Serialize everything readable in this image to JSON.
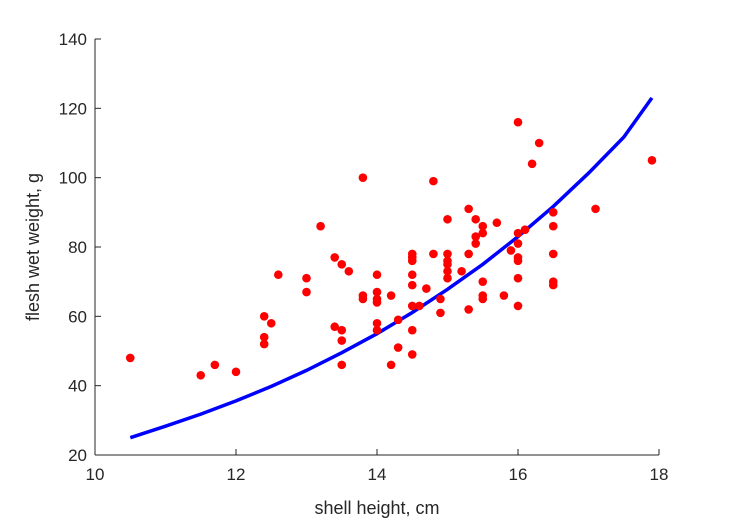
{
  "chart_data": {
    "type": "scatter",
    "title": "",
    "xlabel": "shell height, cm",
    "ylabel": "flesh wet weight, g",
    "xlim": [
      10,
      18
    ],
    "ylim": [
      20,
      140
    ],
    "xticks": [
      10,
      12,
      14,
      16,
      18
    ],
    "yticks": [
      20,
      40,
      60,
      80,
      100,
      120,
      140
    ],
    "grid": false,
    "legend": "none",
    "colors": {
      "points": "#ff0000",
      "fit_line": "#0000ff",
      "axis": "#262626"
    },
    "series": [
      {
        "kind": "points",
        "x": [
          10.5,
          11.5,
          11.7,
          12.0,
          12.4,
          12.4,
          12.4,
          12.5,
          12.6,
          13.0,
          13.0,
          13.2,
          13.4,
          13.4,
          13.5,
          13.5,
          13.5,
          13.5,
          13.6,
          13.8,
          13.8,
          13.8,
          14.0,
          14.0,
          14.0,
          14.0,
          14.0,
          14.0,
          14.2,
          14.2,
          14.3,
          14.3,
          14.5,
          14.5,
          14.5,
          14.5,
          14.5,
          14.5,
          14.5,
          14.5,
          14.6,
          14.7,
          14.8,
          14.8,
          14.9,
          14.9,
          15.0,
          15.0,
          15.0,
          15.0,
          15.0,
          15.0,
          15.2,
          15.3,
          15.3,
          15.3,
          15.4,
          15.4,
          15.4,
          15.5,
          15.5,
          15.5,
          15.5,
          15.5,
          15.7,
          15.8,
          15.9,
          16.0,
          16.0,
          16.0,
          16.0,
          16.0,
          16.0,
          16.0,
          16.1,
          16.2,
          16.3,
          16.5,
          16.5,
          16.5,
          16.5,
          16.5,
          17.1,
          17.9
        ],
        "y": [
          48,
          43,
          46,
          44,
          60,
          54,
          52,
          58,
          72,
          71,
          67,
          86,
          77,
          57,
          75,
          56,
          53,
          46,
          73,
          100,
          66,
          65,
          72,
          67,
          65,
          64,
          58,
          56,
          66,
          46,
          59,
          51,
          78,
          77,
          76,
          72,
          69,
          63,
          56,
          49,
          63,
          68,
          78,
          99,
          65,
          61,
          88,
          78,
          76,
          75,
          73,
          71,
          73,
          91,
          78,
          62,
          88,
          83,
          81,
          86,
          84,
          70,
          66,
          65,
          87,
          66,
          79,
          116,
          84,
          81,
          77,
          76,
          71,
          63,
          85,
          104,
          110,
          90,
          86,
          78,
          69,
          70,
          91,
          105
        ]
      },
      {
        "kind": "line",
        "x": [
          10.5,
          11.0,
          11.5,
          12.0,
          12.5,
          13.0,
          13.5,
          14.0,
          14.5,
          15.0,
          15.5,
          16.0,
          16.5,
          17.0,
          17.5,
          17.9
        ],
        "y": [
          25,
          28.3,
          31.8,
          35.6,
          39.8,
          44.4,
          49.5,
          55.0,
          61.1,
          67.8,
          75.0,
          83.0,
          91.7,
          101.3,
          111.7,
          123
        ]
      }
    ]
  }
}
